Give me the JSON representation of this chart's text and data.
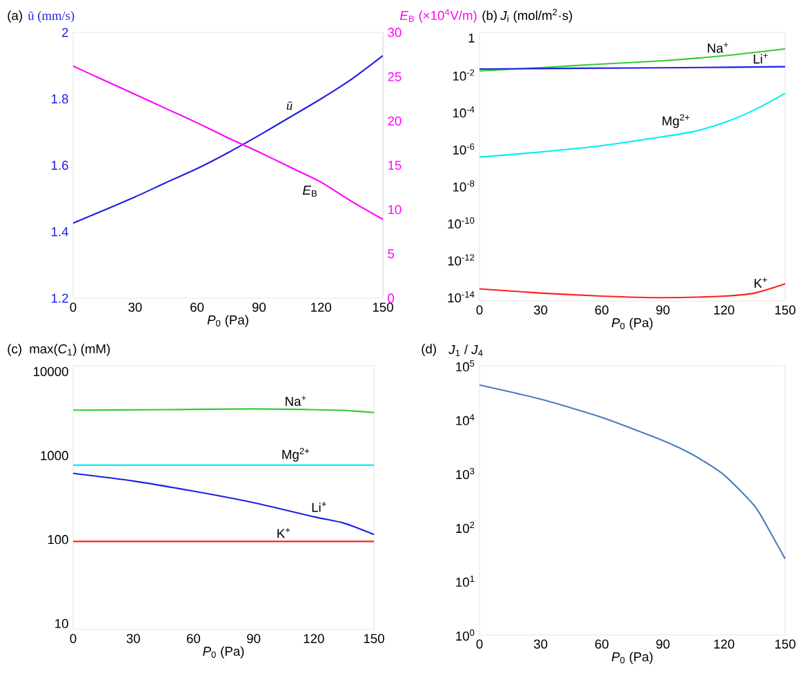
{
  "chart_data": [
    {
      "type": "line",
      "title": "(a)",
      "ylabel": "ū (mm/s)",
      "y2label": "*E*$_{B}$ (×10$^{4}$V/m)",
      "xlabel": "*P*$_{0}$ (Pa)",
      "xlim": [
        0,
        150
      ],
      "xticks": [
        0,
        30,
        60,
        90,
        120,
        150
      ],
      "ylim": [
        1.2,
        2
      ],
      "yticks": [
        1.2,
        1.4,
        1.6,
        1.8,
        2
      ],
      "y2lim": [
        0,
        30
      ],
      "y2ticks": [
        0,
        5,
        10,
        15,
        20,
        25,
        30
      ],
      "series": [
        {
          "name": "ū",
          "color": "#1f1fe6",
          "x": [
            0,
            15,
            30,
            45,
            60,
            75,
            90,
            105,
            120,
            135,
            150
          ],
          "values": [
            1.426,
            1.465,
            1.505,
            1.548,
            1.59,
            1.638,
            1.69,
            1.745,
            1.8,
            1.86,
            1.93
          ]
        },
        {
          "name": "*E*$_{B}$",
          "color": "#ff00ff",
          "axis": "y2",
          "x": [
            0,
            15,
            30,
            45,
            60,
            75,
            90,
            105,
            120,
            135,
            150
          ],
          "values": [
            26.2,
            24.6,
            23.0,
            21.4,
            19.8,
            18.1,
            16.5,
            14.8,
            13.1,
            10.9,
            8.9
          ]
        }
      ]
    },
    {
      "type": "line",
      "title": "(b)",
      "ylabel": "*J*$_{i}$ (mol/m$^{2}$·s)",
      "xlabel": "*P*$_{0}$ (Pa)",
      "log": true,
      "xlim": [
        0,
        150
      ],
      "xticks": [
        0,
        30,
        60,
        90,
        120,
        150
      ],
      "ylim": [
        6e-15,
        2
      ],
      "yticks": [
        {
          "value": 1e-14,
          "label": "10$^{-14}$"
        },
        {
          "value": 1e-12,
          "label": "10$^{-12}$"
        },
        {
          "value": 1e-10,
          "label": "10$^{-10}$"
        },
        {
          "value": 1e-08,
          "label": "10$^{-8}$"
        },
        {
          "value": 1e-06,
          "label": "10$^{-6}$"
        },
        {
          "value": 0.0001,
          "label": "10$^{-4}$"
        },
        {
          "value": 0.01,
          "label": "10$^{-2}$"
        },
        1
      ],
      "series": [
        {
          "name": "Na$^{+}$",
          "color": "#33cc33",
          "x": [
            0,
            30,
            60,
            90,
            120,
            150
          ],
          "values": [
            0.0166,
            0.025,
            0.039,
            0.059,
            0.11,
            0.26
          ]
        },
        {
          "name": "Li$^{+}$",
          "color": "#1f1fe6",
          "x": [
            0,
            50,
            100,
            150
          ],
          "values": [
            0.021,
            0.023,
            0.025,
            0.028
          ]
        },
        {
          "name": "Mg$^{2+}$",
          "color": "#00eeee",
          "x": [
            0,
            30,
            60,
            90,
            105,
            120,
            135,
            150
          ],
          "values": [
            3.6e-07,
            6.8e-07,
            1.5e-06,
            4.6e-06,
            8.7e-06,
            2.6e-05,
            0.00013,
            0.001
          ]
        },
        {
          "name": "K$^{+}$",
          "color": "#ff2020",
          "x": [
            0,
            30,
            60,
            90,
            120,
            135,
            150
          ],
          "values": [
            2.7e-14,
            1.6e-14,
            1.1e-14,
            9e-15,
            1.1e-14,
            1.6e-14,
            5e-14
          ]
        }
      ]
    },
    {
      "type": "line",
      "title": "(c)",
      "ylabel": "max(*C*$_{1}$) (mM)",
      "xlabel": "*P*$_{0}$ (Pa)",
      "log": true,
      "xlim": [
        0,
        150
      ],
      "xticks": [
        0,
        30,
        60,
        90,
        120,
        150
      ],
      "ylim": [
        8.5,
        11700
      ],
      "yticks": [
        10,
        100,
        1000,
        10000
      ],
      "series": [
        {
          "name": "Na$^{+}$",
          "color": "#33cc33",
          "x": [
            0,
            45,
            90,
            120,
            135,
            150
          ],
          "values": [
            3470,
            3520,
            3590,
            3520,
            3450,
            3250
          ]
        },
        {
          "name": "Mg$^{2+}$",
          "color": "#00eeee",
          "x": [
            0,
            150
          ],
          "values": [
            770,
            770
          ]
        },
        {
          "name": "Li$^{+}$",
          "color": "#1f1fe6",
          "x": [
            0,
            30,
            60,
            90,
            120,
            135,
            150
          ],
          "values": [
            614,
            498,
            377,
            275,
            187,
            157,
            115
          ]
        },
        {
          "name": "K$^{+}$",
          "color": "#ff2020",
          "x": [
            0,
            150
          ],
          "values": [
            95,
            95
          ]
        }
      ]
    },
    {
      "type": "line",
      "title": "(d)",
      "ylabel": "*J*$_{1}$ / *J*$_{4}$",
      "xlabel": "*P*$_{0}$ (Pa)",
      "log": true,
      "xlim": [
        0,
        150
      ],
      "xticks": [
        0,
        30,
        60,
        90,
        120,
        150
      ],
      "ylim": [
        1,
        100000
      ],
      "yticks": [
        {
          "value": 1,
          "label": "10$^{0}$"
        },
        {
          "value": 10,
          "label": "10$^{1}$"
        },
        {
          "value": 100,
          "label": "10$^{2}$"
        },
        {
          "value": 1000,
          "label": "10$^{3}$"
        },
        {
          "value": 10000,
          "label": "10$^{4}$"
        },
        {
          "value": 100000,
          "label": "10$^{5}$"
        }
      ],
      "series": [
        {
          "color": "#4a7ebb",
          "x": [
            0,
            30,
            60,
            90,
            105,
            120,
            135,
            142,
            150
          ],
          "values": [
            44000,
            24000,
            11000,
            4100,
            2200,
            940,
            250,
            91,
            26
          ]
        }
      ]
    }
  ]
}
